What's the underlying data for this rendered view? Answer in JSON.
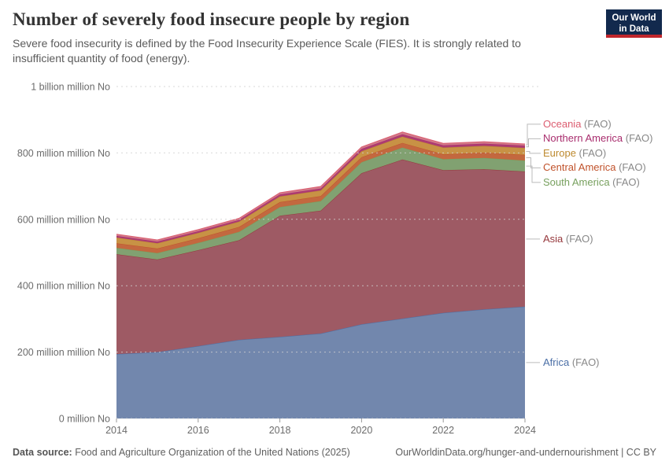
{
  "header": {
    "title": "Number of severely food insecure people by region",
    "subtitle": "Severe food insecurity is defined by the Food Insecurity Experience Scale (FIES). It is strongly related to insufficient quantity of food (energy).",
    "logo": {
      "line1": "Our World",
      "line2": "in Data"
    }
  },
  "footer": {
    "datasource_label": "Data source:",
    "datasource": "Food and Agriculture Organization of the United Nations (2025)",
    "link": "OurWorldinData.org/hunger-and-undernourishment | CC BY"
  },
  "chart_data": {
    "type": "area",
    "stacked": true,
    "stack_order": "bottom-to-top",
    "title": "Number of severely food insecure people by region",
    "x": [
      2014,
      2015,
      2016,
      2017,
      2018,
      2019,
      2020,
      2021,
      2022,
      2023,
      2024
    ],
    "xticks": [
      "2014",
      "2016",
      "2018",
      "2020",
      "2022",
      "2024"
    ],
    "yticks": [
      {
        "value": 0,
        "label": "0 million No"
      },
      {
        "value": 200,
        "label": "200 million million No"
      },
      {
        "value": 400,
        "label": "400 million million No"
      },
      {
        "value": 600,
        "label": "600 million million No"
      },
      {
        "value": 800,
        "label": "800 million million No"
      },
      {
        "value": 1000,
        "label": "1 billion million No"
      }
    ],
    "ylim_millions": [
      0,
      1000
    ],
    "grid": "dashed-horizontal",
    "legend_position": "right",
    "legend_suffix_color": "#888",
    "series": [
      {
        "name": "Africa",
        "suffix": "(FAO)",
        "fill": "#7287ad",
        "color": "#4b6fa6",
        "values": [
          194,
          200,
          218,
          237,
          246,
          256,
          284,
          301,
          318,
          329,
          337
        ]
      },
      {
        "name": "Asia",
        "suffix": "(FAO)",
        "fill": "#9e5a64",
        "color": "#96383c",
        "values": [
          301,
          279,
          289,
          300,
          365,
          370,
          455,
          479,
          430,
          422,
          407
        ]
      },
      {
        "name": "South America",
        "suffix": "(FAO)",
        "fill": "#81a171",
        "color": "#77a05e",
        "values": [
          19,
          19,
          22,
          25,
          26,
          29,
          33,
          36,
          33,
          34,
          33
        ]
      },
      {
        "name": "Central America",
        "suffix": "(FAO)",
        "fill": "#c3683f",
        "color": "#c0522b",
        "values": [
          14,
          14,
          14,
          15,
          15,
          15,
          15,
          14,
          15,
          16,
          17
        ]
      },
      {
        "name": "Europe",
        "suffix": "(FAO)",
        "fill": "#c89245",
        "color": "#bd8a2f",
        "values": [
          17,
          16,
          16,
          16,
          17,
          17,
          18,
          19,
          20,
          20,
          21
        ]
      },
      {
        "name": "Northern America",
        "suffix": "(FAO)",
        "fill": "#ad3c72",
        "color": "#a82c6d",
        "values": [
          5,
          5,
          5,
          5,
          6,
          6,
          7,
          7,
          7,
          7,
          7
        ]
      },
      {
        "name": "Oceania",
        "suffix": "(FAO)",
        "fill": "#d07a88",
        "color": "#dc5d70",
        "values": [
          5,
          5,
          5,
          5,
          5,
          6,
          6,
          7,
          6,
          6,
          5
        ]
      }
    ]
  }
}
